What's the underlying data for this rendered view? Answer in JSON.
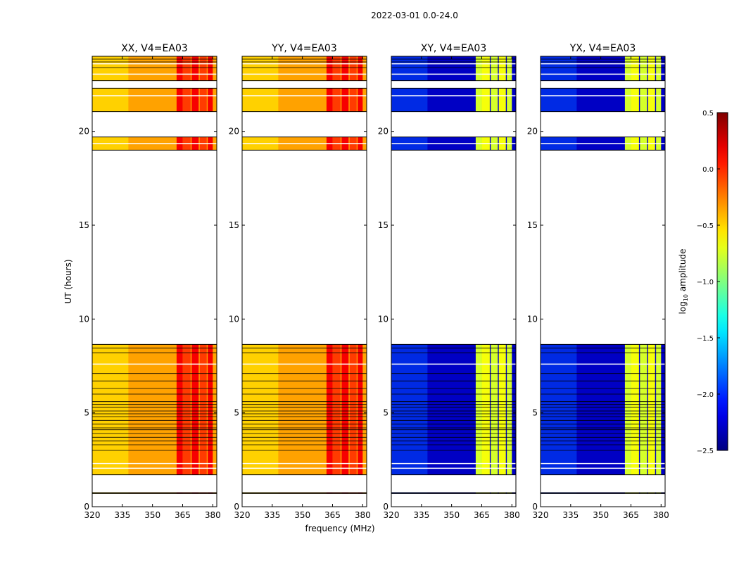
{
  "figure": {
    "suptitle": "2022-03-01 0.0-24.0"
  },
  "chart_data": {
    "type": "heatmap",
    "xlabel": "frequency (MHz)",
    "ylabel": "UT (hours)",
    "xlim": [
      320,
      382
    ],
    "ylim": [
      0,
      24
    ],
    "x_ticks": [
      "320",
      "335",
      "350",
      "365",
      "380"
    ],
    "x_tick_values": [
      320,
      335,
      350,
      365,
      380
    ],
    "y_ticks": [
      "0",
      "5",
      "10",
      "15",
      "20"
    ],
    "y_tick_values": [
      0,
      5,
      10,
      15,
      20
    ],
    "data_time_ranges_hours": [
      [
        0.7,
        0.75
      ],
      [
        1.7,
        8.65
      ],
      [
        19.0,
        19.7
      ],
      [
        21.05,
        22.3
      ],
      [
        22.7,
        24.0
      ]
    ],
    "panels": [
      {
        "title": "XX, V4=EA03",
        "base_level": -0.35,
        "band_level": 0.1
      },
      {
        "title": "YY, V4=EA03",
        "base_level": -0.35,
        "band_level": 0.1
      },
      {
        "title": "XY, V4=EA03",
        "base_level": -2.3,
        "band_level": -0.8
      },
      {
        "title": "YX, V4=EA03",
        "base_level": -2.3,
        "band_level": -0.8
      }
    ],
    "colorbar": {
      "label": "log10 amplitude",
      "label_prefix": "log",
      "label_sub": "10",
      "label_suffix": " amplitude",
      "colormap": "jet",
      "range": [
        -2.5,
        0.5
      ],
      "ticks": [
        "0.5",
        "0.0",
        "−0.5",
        "−1.0",
        "−1.5",
        "−2.0",
        "−2.5"
      ],
      "tick_values": [
        0.5,
        0.0,
        -0.5,
        -1.0,
        -1.5,
        -2.0,
        -2.5
      ]
    }
  }
}
